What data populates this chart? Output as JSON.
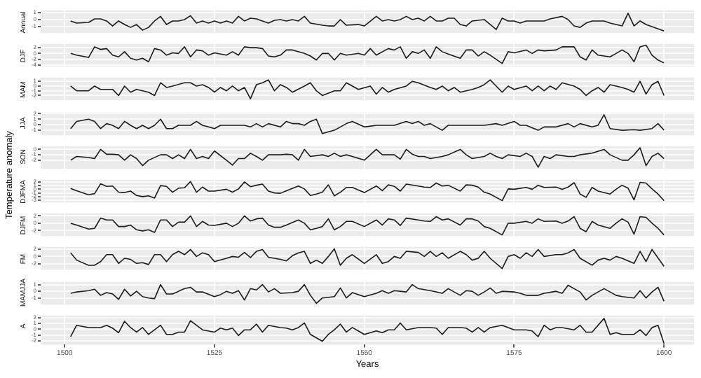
{
  "chart_data": [
    {
      "type": "line",
      "title": "Annual",
      "color": "#1a1a1a",
      "tick_labels": "y",
      "grid": true,
      "xlim": [
        1496,
        1605
      ],
      "xticks": [
        1500,
        1525,
        1550,
        1575,
        1600
      ],
      "ylim": [
        -1.9,
        1.3
      ],
      "yticks": [
        -1,
        0,
        1
      ],
      "x": [
        1501,
        1502,
        1504,
        1505,
        1506,
        1507,
        1508,
        1509,
        1510,
        1511,
        1512,
        1513,
        1514,
        1515,
        1516,
        1517,
        1518,
        1519,
        1520,
        1521,
        1522,
        1523,
        1524,
        1525,
        1526,
        1527,
        1528,
        1529,
        1530,
        1531,
        1532,
        1533,
        1534,
        1535,
        1536,
        1537,
        1538,
        1539,
        1540,
        1541,
        1543,
        1544,
        1545,
        1546,
        1547,
        1549,
        1550,
        1552,
        1553,
        1554,
        1555,
        1556,
        1557,
        1558,
        1559,
        1560,
        1561,
        1562,
        1563,
        1564,
        1565,
        1566,
        1567,
        1568,
        1570,
        1572,
        1573,
        1574,
        1575,
        1576,
        1577,
        1578,
        1580,
        1581,
        1583,
        1584,
        1585,
        1586,
        1587,
        1588,
        1590,
        1591,
        1592,
        1593,
        1594,
        1595,
        1596,
        1597,
        1600
      ],
      "values": [
        -0.2,
        -0.5,
        -0.4,
        0.1,
        0.1,
        -0.2,
        -0.9,
        -0.2,
        -0.7,
        -1.1,
        -0.7,
        -1.5,
        -1.1,
        -0.2,
        0.45,
        -0.7,
        -0.2,
        -0.2,
        0,
        0.55,
        -0.5,
        -0.2,
        -0.5,
        -0.2,
        -0.5,
        -0.2,
        -0.5,
        0.45,
        -0.2,
        0.2,
        0.1,
        -0.2,
        -0.5,
        -0.1,
        0,
        -0.2,
        0,
        -0.2,
        0.45,
        -0.5,
        -0.8,
        -0.9,
        -0.9,
        0,
        -0.8,
        -0.7,
        -0.9,
        0.45,
        -0.2,
        0,
        -0.2,
        0,
        0.45,
        0,
        0.2,
        -0.2,
        0.45,
        -0.2,
        -0.2,
        0.2,
        0.2,
        -0.7,
        -0.9,
        -0.2,
        0,
        -1.4,
        0.2,
        -0.2,
        -0.2,
        -0.5,
        -0.2,
        -0.2,
        -0.2,
        0.1,
        0.45,
        0,
        -0.9,
        -1.1,
        -0.5,
        -0.2,
        -0.2,
        -0.5,
        -0.7,
        -0.9,
        0.9,
        -0.9,
        -0.2,
        -0.7,
        -1.6
      ]
    },
    {
      "type": "line",
      "title": "DJF",
      "color": "#1a1a1a",
      "tick_labels": "y",
      "grid": true,
      "xlim": [
        1496,
        1605
      ],
      "xticks": [
        1500,
        1525,
        1550,
        1575,
        1600
      ],
      "ylim": [
        -4.6,
        3.3
      ],
      "yticks": [
        -4,
        -2,
        0,
        2
      ],
      "x": [
        1501,
        1502,
        1504,
        1505,
        1506,
        1507,
        1508,
        1509,
        1510,
        1511,
        1512,
        1513,
        1514,
        1515,
        1516,
        1517,
        1518,
        1519,
        1520,
        1521,
        1522,
        1523,
        1524,
        1525,
        1527,
        1528,
        1529,
        1530,
        1531,
        1532,
        1533,
        1534,
        1535,
        1536,
        1537,
        1538,
        1540,
        1541,
        1542,
        1543,
        1544,
        1545,
        1546,
        1547,
        1549,
        1550,
        1551,
        1552,
        1554,
        1555,
        1556,
        1557,
        1558,
        1559,
        1560,
        1561,
        1562,
        1563,
        1564,
        1566,
        1567,
        1568,
        1569,
        1570,
        1571,
        1573,
        1574,
        1575,
        1577,
        1578,
        1579,
        1580,
        1582,
        1583,
        1585,
        1586,
        1587,
        1588,
        1589,
        1591,
        1592,
        1593,
        1594,
        1595,
        1596,
        1597,
        1598,
        1599,
        1600
      ],
      "values": [
        0,
        -0.6,
        -1.4,
        2.3,
        1.4,
        1.7,
        -0.6,
        -1.2,
        0.6,
        -1.7,
        -2.3,
        -1.7,
        -2.9,
        1.7,
        1.2,
        -0.6,
        0.2,
        0,
        2.3,
        -1.2,
        1.2,
        0.9,
        -0.6,
        0.2,
        -0.6,
        0.6,
        -0.6,
        2.3,
        2,
        2,
        1.7,
        -0.9,
        -1.2,
        -0.6,
        1.2,
        1.2,
        0,
        -0.9,
        -2.3,
        0,
        0,
        -2.3,
        0,
        -0.6,
        0,
        -0.6,
        1.7,
        -0.6,
        1.7,
        1.2,
        2.3,
        -1.7,
        0.6,
        0,
        1.2,
        -1.7,
        2.3,
        0.6,
        -0.2,
        -1.7,
        1.2,
        1.2,
        -0.9,
        0.6,
        -0.6,
        -3.5,
        0.6,
        0.2,
        1.2,
        0,
        1.2,
        0.9,
        1.2,
        2.3,
        2.3,
        -1.2,
        -2.3,
        1.2,
        -0.6,
        -1.2,
        0,
        1.2,
        0,
        -2.9,
        2.3,
        2.9,
        -0.6,
        -2.3,
        -3.3
      ]
    },
    {
      "type": "line",
      "title": "MAM",
      "color": "#1a1a1a",
      "tick_labels": "y",
      "grid": true,
      "xlim": [
        1496,
        1605
      ],
      "xticks": [
        1500,
        1525,
        1550,
        1575,
        1600
      ],
      "ylim": [
        -3,
        1.8
      ],
      "yticks": [
        -2,
        -1,
        0,
        1
      ],
      "x": [
        1501,
        1502,
        1504,
        1505,
        1506,
        1508,
        1509,
        1510,
        1511,
        1512,
        1514,
        1515,
        1516,
        1517,
        1518,
        1520,
        1521,
        1522,
        1523,
        1524,
        1525,
        1526,
        1527,
        1528,
        1529,
        1530,
        1531,
        1532,
        1533,
        1534,
        1535,
        1536,
        1537,
        1538,
        1540,
        1541,
        1542,
        1543,
        1545,
        1546,
        1547,
        1549,
        1551,
        1552,
        1553,
        1554,
        1555,
        1557,
        1558,
        1559,
        1561,
        1562,
        1563,
        1564,
        1565,
        1566,
        1568,
        1569,
        1570,
        1571,
        1572,
        1573,
        1574,
        1575,
        1577,
        1578,
        1579,
        1580,
        1581,
        1582,
        1583,
        1585,
        1586,
        1587,
        1588,
        1589,
        1590,
        1591,
        1593,
        1594,
        1595,
        1596,
        1597,
        1598,
        1599,
        1600
      ],
      "values": [
        0,
        -1,
        -1,
        0,
        -0.7,
        -0.7,
        -2,
        0,
        -1.3,
        -0.7,
        -1.3,
        -2,
        0.7,
        -0.3,
        0,
        0.7,
        0.7,
        0,
        0.3,
        -0.3,
        -1.3,
        -0.3,
        -1,
        0,
        -1,
        -0.3,
        -2.7,
        0.3,
        0.7,
        1.3,
        -1,
        0.3,
        -0.3,
        -1.3,
        0,
        0.7,
        -1,
        -2,
        -1,
        -1,
        0.7,
        -0.7,
        0,
        -1.7,
        -0.3,
        -1.3,
        -0.7,
        0,
        1,
        0.7,
        -0.3,
        -0.7,
        0,
        -1,
        -0.3,
        -1.3,
        -0.7,
        -0.3,
        0.3,
        1.3,
        0,
        -1.3,
        0,
        -0.7,
        0,
        -1,
        0,
        -1,
        0,
        -0.7,
        0.7,
        0,
        -0.7,
        -2,
        -1,
        -0.3,
        -1.3,
        0.3,
        -0.3,
        -0.7,
        -1.3,
        1,
        -1.7,
        0.3,
        1,
        -2
      ]
    },
    {
      "type": "line",
      "title": "JJA",
      "color": "#1a1a1a",
      "tick_labels": "y",
      "grid": true,
      "xlim": [
        1496,
        1605
      ],
      "xticks": [
        1500,
        1525,
        1550,
        1575,
        1600
      ],
      "ylim": [
        -1.9,
        2.2
      ],
      "yticks": [
        -1,
        0,
        1,
        2
      ],
      "x": [
        1501,
        1502,
        1504,
        1505,
        1506,
        1507,
        1508,
        1509,
        1510,
        1511,
        1512,
        1513,
        1514,
        1515,
        1516,
        1517,
        1518,
        1519,
        1521,
        1522,
        1523,
        1524,
        1525,
        1526,
        1528,
        1530,
        1531,
        1532,
        1533,
        1534,
        1536,
        1537,
        1538,
        1539,
        1540,
        1541,
        1542,
        1543,
        1545,
        1546,
        1547,
        1548,
        1550,
        1552,
        1554,
        1555,
        1557,
        1558,
        1559,
        1560,
        1561,
        1563,
        1564,
        1566,
        1568,
        1570,
        1572,
        1573,
        1575,
        1576,
        1577,
        1579,
        1580,
        1582,
        1584,
        1585,
        1586,
        1588,
        1589,
        1590,
        1591,
        1593,
        1595,
        1596,
        1598,
        1599,
        1600
      ],
      "values": [
        -0.7,
        0.6,
        1,
        0.6,
        -0.7,
        0.2,
        -0.1,
        -0.7,
        0.6,
        -0.1,
        -0.7,
        -0.1,
        -0.7,
        -0.1,
        1,
        -0.7,
        -0.7,
        -0.1,
        -0.1,
        0.6,
        -0.1,
        -0.4,
        -0.7,
        -0.1,
        -0.1,
        -0.1,
        -0.4,
        0.2,
        -0.4,
        0.2,
        -0.4,
        0.6,
        0.2,
        0.2,
        -0.1,
        0.6,
        1,
        -1.6,
        -1,
        -0.4,
        0.2,
        0.6,
        -0.4,
        -0.1,
        -0.1,
        -0.1,
        0.6,
        0.2,
        0.6,
        -0.1,
        0.2,
        -1,
        -0.1,
        -0.1,
        -0.1,
        -0.1,
        0.2,
        -0.1,
        0.6,
        -0.1,
        -0.1,
        -1,
        -0.4,
        -0.4,
        0.2,
        -0.4,
        0.2,
        -0.4,
        -0.1,
        1.8,
        -0.7,
        -1,
        -0.9,
        -1,
        -0.7,
        0.2,
        -1
      ]
    },
    {
      "type": "line",
      "title": "SON",
      "color": "#1a1a1a",
      "tick_labels": "y",
      "grid": true,
      "xlim": [
        1496,
        1605
      ],
      "xticks": [
        1500,
        1525,
        1550,
        1575,
        1600
      ],
      "ylim": [
        -3.6,
        0.6
      ],
      "yticks": [
        -2,
        -1,
        0
      ],
      "x": [
        1501,
        1502,
        1504,
        1505,
        1506,
        1507,
        1508,
        1509,
        1510,
        1511,
        1512,
        1513,
        1514,
        1516,
        1517,
        1518,
        1519,
        1520,
        1521,
        1522,
        1523,
        1524,
        1525,
        1527,
        1528,
        1529,
        1530,
        1531,
        1532,
        1533,
        1534,
        1536,
        1537,
        1538,
        1539,
        1540,
        1541,
        1543,
        1544,
        1545,
        1546,
        1547,
        1548,
        1550,
        1552,
        1553,
        1555,
        1556,
        1557,
        1558,
        1559,
        1560,
        1561,
        1563,
        1564,
        1566,
        1567,
        1568,
        1570,
        1571,
        1572,
        1573,
        1574,
        1576,
        1577,
        1578,
        1579,
        1580,
        1581,
        1582,
        1584,
        1585,
        1586,
        1588,
        1590,
        1591,
        1593,
        1594,
        1595,
        1596,
        1597,
        1598,
        1599,
        1600
      ],
      "values": [
        -2,
        -1.3,
        -1.5,
        -1.7,
        0,
        -0.9,
        -0.9,
        -1,
        -2,
        -1,
        -1.7,
        -3,
        -2,
        -1,
        -1,
        -1.7,
        -1,
        -1.7,
        0,
        -1.7,
        -1.3,
        -1.7,
        -0.3,
        -2,
        -2.9,
        -1.7,
        -1.7,
        -0.7,
        -1.3,
        -2,
        -1,
        -1,
        -0.9,
        -1,
        -2,
        0,
        -1.3,
        -1,
        -1.3,
        -0.7,
        -1.3,
        -1,
        -1.3,
        -2,
        0,
        -1,
        -1,
        -1.8,
        0,
        -0.9,
        -1.3,
        -1.3,
        -1.7,
        -1.3,
        -1,
        0,
        -1,
        -1.7,
        -1.3,
        -0.7,
        -1.3,
        -1.7,
        -1,
        -1.3,
        -0.7,
        -1.3,
        -3.3,
        -1.3,
        -1.7,
        -1,
        -1.3,
        -1.3,
        -1,
        -0.7,
        0,
        -1,
        -2,
        -2,
        -1,
        0.3,
        -3,
        -1.3,
        -0.7,
        -1.7
      ]
    },
    {
      "type": "line",
      "title": "DJFMA",
      "ylabel": "Temperature anomaly",
      "color": "#1a1a1a",
      "tick_labels": "y",
      "grid": true,
      "xlim": [
        1496,
        1605
      ],
      "xticks": [
        1500,
        1525,
        1550,
        1575,
        1600
      ],
      "ylim": [
        -3.6,
        2.6
      ],
      "yticks": [
        -3,
        -2,
        -1,
        0,
        1,
        2
      ],
      "x": [
        1501,
        1502,
        1504,
        1505,
        1506,
        1507,
        1508,
        1509,
        1510,
        1511,
        1512,
        1513,
        1514,
        1515,
        1516,
        1517,
        1518,
        1519,
        1520,
        1521,
        1522,
        1523,
        1524,
        1525,
        1527,
        1528,
        1529,
        1530,
        1531,
        1532,
        1533,
        1534,
        1535,
        1536,
        1537,
        1539,
        1540,
        1541,
        1542,
        1543,
        1544,
        1545,
        1546,
        1547,
        1548,
        1550,
        1552,
        1553,
        1554,
        1555,
        1556,
        1557,
        1559,
        1560,
        1561,
        1562,
        1563,
        1564,
        1566,
        1567,
        1568,
        1569,
        1570,
        1571,
        1573,
        1574,
        1575,
        1577,
        1578,
        1579,
        1580,
        1582,
        1583,
        1584,
        1585,
        1586,
        1587,
        1588,
        1589,
        1591,
        1592,
        1593,
        1594,
        1595,
        1596,
        1597,
        1598,
        1599,
        1600
      ],
      "values": [
        0.2,
        -0.4,
        -1.5,
        -1.2,
        1.5,
        0.8,
        0.9,
        -0.8,
        -0.9,
        -0.5,
        -1.7,
        -2,
        -1.8,
        -2.4,
        1,
        0.8,
        -0.8,
        0.3,
        0.4,
        2.1,
        -0.8,
        0.6,
        -0.5,
        -0.5,
        0,
        -0.8,
        0.1,
        2,
        0.7,
        1.1,
        1.4,
        -0.5,
        -1,
        -1.1,
        -0.4,
        0.9,
        0.1,
        -1.7,
        -1.3,
        -0.8,
        1.2,
        -1.8,
        -0.8,
        0.5,
        0.5,
        -0.9,
        0.9,
        -0.4,
        1.2,
        0.8,
        -0.5,
        1.4,
        0.9,
        0.6,
        0.5,
        1.7,
        0.9,
        1.1,
        -0.5,
        1.2,
        1.1,
        0.6,
        -0.8,
        -1.3,
        -3.1,
        0.1,
        0,
        0.5,
        0,
        1.1,
        0.5,
        0.6,
        0,
        0.6,
        1.8,
        -1.3,
        -2.2,
        0.5,
        -0.5,
        -1.3,
        0,
        1.1,
        0.3,
        -2.9,
        1.9,
        1.7,
        0.1,
        -1.3,
        -3.1
      ]
    },
    {
      "type": "line",
      "title": "DJFM",
      "color": "#1a1a1a",
      "tick_labels": "y",
      "grid": true,
      "xlim": [
        1496,
        1605
      ],
      "xticks": [
        1500,
        1525,
        1550,
        1575,
        1600
      ],
      "ylim": [
        -3.5,
        2.7
      ],
      "yticks": [
        -2,
        0,
        2
      ],
      "x": [
        1501,
        1502,
        1504,
        1505,
        1506,
        1507,
        1508,
        1509,
        1510,
        1511,
        1512,
        1513,
        1514,
        1515,
        1516,
        1517,
        1518,
        1519,
        1520,
        1521,
        1522,
        1523,
        1524,
        1525,
        1527,
        1528,
        1529,
        1530,
        1531,
        1532,
        1533,
        1534,
        1535,
        1536,
        1537,
        1539,
        1540,
        1541,
        1542,
        1543,
        1544,
        1545,
        1546,
        1547,
        1548,
        1550,
        1552,
        1553,
        1554,
        1555,
        1556,
        1557,
        1559,
        1560,
        1561,
        1562,
        1563,
        1564,
        1566,
        1567,
        1568,
        1569,
        1570,
        1571,
        1573,
        1574,
        1575,
        1577,
        1578,
        1579,
        1580,
        1582,
        1583,
        1584,
        1585,
        1586,
        1587,
        1588,
        1589,
        1591,
        1592,
        1593,
        1594,
        1595,
        1596,
        1597,
        1598,
        1599,
        1600
      ],
      "values": [
        0,
        -0.5,
        -1.6,
        -1.4,
        1.4,
        0.9,
        0.9,
        -0.9,
        -0.9,
        -0.5,
        -1.8,
        -2.1,
        -1.8,
        -2.5,
        0.9,
        0.9,
        -0.9,
        0.3,
        0.3,
        2,
        -0.9,
        0.5,
        -0.5,
        -0.6,
        0,
        -0.9,
        0,
        2,
        0.6,
        1.2,
        1.4,
        -0.5,
        -1.1,
        -1.1,
        -0.5,
        0.9,
        0,
        -1.8,
        -1.4,
        -0.9,
        1.2,
        -1.8,
        -0.9,
        0.5,
        0.5,
        -0.9,
        0.9,
        -0.5,
        1.2,
        0.9,
        -0.6,
        1.4,
        0.9,
        0.6,
        0.5,
        1.8,
        0.9,
        1.2,
        -0.5,
        1.2,
        1.2,
        0.6,
        -0.9,
        -1.4,
        -3.2,
        0,
        0,
        0.5,
        0,
        1.2,
        0.5,
        0.6,
        0,
        0.6,
        1.8,
        -1.4,
        -2.3,
        0.5,
        -0.5,
        -1.4,
        0,
        1.2,
        0.3,
        -3,
        1.8,
        1.6,
        0,
        -1.4,
        -3.2
      ]
    },
    {
      "type": "line",
      "title": "FM",
      "color": "#1a1a1a",
      "tick_labels": "y",
      "grid": true,
      "xlim": [
        1496,
        1605
      ],
      "xticks": [
        1500,
        1525,
        1550,
        1575,
        1600
      ],
      "ylim": [
        -3.6,
        2.6
      ],
      "yticks": [
        -2,
        0,
        2
      ],
      "x": [
        1501,
        1502,
        1504,
        1505,
        1506,
        1507,
        1508,
        1509,
        1510,
        1511,
        1512,
        1513,
        1514,
        1515,
        1516,
        1517,
        1518,
        1519,
        1520,
        1521,
        1522,
        1523,
        1524,
        1525,
        1527,
        1528,
        1529,
        1530,
        1531,
        1532,
        1533,
        1534,
        1536,
        1537,
        1538,
        1539,
        1540,
        1541,
        1542,
        1543,
        1544,
        1545,
        1546,
        1547,
        1548,
        1550,
        1552,
        1553,
        1554,
        1555,
        1556,
        1557,
        1559,
        1560,
        1561,
        1562,
        1563,
        1564,
        1566,
        1567,
        1568,
        1569,
        1570,
        1571,
        1573,
        1574,
        1575,
        1576,
        1577,
        1578,
        1579,
        1580,
        1582,
        1583,
        1584,
        1585,
        1586,
        1588,
        1589,
        1590,
        1591,
        1592,
        1593,
        1595,
        1596,
        1597,
        1598,
        1600
      ],
      "values": [
        1,
        -1,
        -2.4,
        -2.4,
        -1.4,
        0.5,
        0.5,
        -1.9,
        -0.5,
        -0.8,
        -1.9,
        -1.7,
        -2.2,
        0.5,
        0.5,
        -1.4,
        0.5,
        1.4,
        0.5,
        1.9,
        0,
        1,
        0.5,
        -1.4,
        -0.5,
        0,
        -0.2,
        1.1,
        -0.3,
        1.4,
        1.9,
        -0.2,
        -0.8,
        -1.2,
        0.2,
        1,
        1.4,
        -1.9,
        -1,
        -1.9,
        0,
        2.1,
        -2.4,
        -0.5,
        0.5,
        -1.9,
        0.5,
        -1.9,
        -1.4,
        0,
        -0.5,
        1.4,
        1.1,
        0,
        1.4,
        0,
        1,
        -0.5,
        1.4,
        0.5,
        -1,
        -0.5,
        1.4,
        -0.5,
        -3.3,
        0,
        0.5,
        -0.5,
        1,
        0,
        1.9,
        0,
        0.5,
        0.5,
        1,
        1.9,
        -0.5,
        -2.4,
        -1,
        -0.5,
        -1,
        0,
        -0.5,
        -1.9,
        1.4,
        -1.4,
        1.9,
        -2.7
      ]
    },
    {
      "type": "line",
      "title": "MAMJJA",
      "color": "#1a1a1a",
      "tick_labels": "y",
      "grid": true,
      "xlim": [
        1496,
        1605
      ],
      "xticks": [
        1500,
        1525,
        1550,
        1575,
        1600
      ],
      "ylim": [
        -2,
        1.4
      ],
      "yticks": [
        -1,
        0,
        1
      ],
      "x": [
        1501,
        1502,
        1504,
        1505,
        1506,
        1507,
        1508,
        1509,
        1510,
        1511,
        1512,
        1513,
        1514,
        1515,
        1516,
        1517,
        1518,
        1520,
        1521,
        1522,
        1523,
        1525,
        1526,
        1527,
        1528,
        1529,
        1530,
        1531,
        1532,
        1533,
        1534,
        1535,
        1536,
        1538,
        1539,
        1540,
        1541,
        1542,
        1543,
        1545,
        1546,
        1547,
        1548,
        1550,
        1552,
        1553,
        1554,
        1555,
        1556,
        1557,
        1558,
        1559,
        1561,
        1562,
        1563,
        1564,
        1566,
        1567,
        1568,
        1569,
        1570,
        1571,
        1572,
        1573,
        1575,
        1576,
        1577,
        1579,
        1580,
        1582,
        1583,
        1584,
        1585,
        1586,
        1587,
        1588,
        1590,
        1591,
        1592,
        1593,
        1595,
        1596,
        1597,
        1598,
        1599,
        1600
      ],
      "values": [
        -0.3,
        -0.1,
        0.1,
        0.3,
        -0.6,
        -0.2,
        -0.4,
        -1.2,
        0.3,
        -0.7,
        0,
        -0.8,
        -1,
        -1.1,
        1,
        -0.4,
        -0.4,
        0.4,
        0.6,
        -0.1,
        -0.1,
        -0.8,
        -0.5,
        0,
        -0.3,
        0.1,
        -1.3,
        0.4,
        0.2,
        1,
        -0.1,
        0.4,
        -0.3,
        -0.2,
        0,
        1,
        -0.6,
        -1.8,
        -1,
        -0.8,
        0.5,
        -1,
        -0.2,
        -0.8,
        -0.3,
        0.1,
        -0.3,
        0.1,
        0,
        -0.1,
        1,
        0.4,
        0.1,
        -0.1,
        -0.3,
        0.4,
        -0.6,
        0.1,
        0,
        -0.6,
        -0.1,
        0.5,
        -0.3,
        0,
        -0.1,
        -0.3,
        -0.6,
        -0.6,
        -0.3,
        0,
        -0.3,
        0.9,
        0.4,
        -0.1,
        -1.3,
        -0.6,
        0.4,
        -0.1,
        -0.6,
        -0.8,
        -1,
        0.1,
        -1,
        -0.1,
        0.6,
        -1.5
      ]
    },
    {
      "type": "line",
      "title": "A",
      "xlabel": "Years",
      "color": "#1a1a1a",
      "grid": true,
      "xlim": [
        1496,
        1605
      ],
      "xticks": [
        1500,
        1525,
        1550,
        1575,
        1600
      ],
      "ylim": [
        -2.7,
        2.4
      ],
      "yticks": [
        -2,
        -1,
        0,
        1,
        2
      ],
      "x": [
        1501,
        1502,
        1504,
        1505,
        1506,
        1507,
        1508,
        1509,
        1510,
        1511,
        1512,
        1513,
        1514,
        1516,
        1517,
        1518,
        1519,
        1520,
        1521,
        1522,
        1523,
        1525,
        1526,
        1527,
        1528,
        1529,
        1530,
        1531,
        1532,
        1533,
        1534,
        1536,
        1537,
        1538,
        1539,
        1540,
        1541,
        1543,
        1544,
        1545,
        1546,
        1547,
        1548,
        1550,
        1552,
        1553,
        1554,
        1555,
        1556,
        1557,
        1559,
        1560,
        1561,
        1562,
        1563,
        1564,
        1566,
        1567,
        1568,
        1569,
        1570,
        1571,
        1573,
        1574,
        1575,
        1577,
        1578,
        1579,
        1580,
        1581,
        1582,
        1583,
        1585,
        1586,
        1587,
        1588,
        1590,
        1591,
        1592,
        1593,
        1595,
        1596,
        1597,
        1598,
        1599,
        1600
      ],
      "values": [
        -1.3,
        0.7,
        0.3,
        0.3,
        0.3,
        0.7,
        0.2,
        -0.6,
        1.4,
        0.3,
        -0.5,
        0.3,
        -0.9,
        0.7,
        -0.9,
        -0.9,
        -0.5,
        -0.5,
        1.5,
        0.7,
        -0.1,
        -0.5,
        0.2,
        -0.1,
        0.2,
        -1.1,
        -0.1,
        -0.1,
        0.9,
        -0.5,
        0.7,
        0.3,
        0.2,
        -0.1,
        0.3,
        1.1,
        -0.9,
        -2.1,
        -0.9,
        -0.1,
        0.9,
        -0.5,
        0.3,
        -0.9,
        -0.3,
        -0.6,
        -0.1,
        -0.1,
        1.1,
        -0.1,
        0.3,
        0.3,
        0.3,
        0.2,
        -0.9,
        0.3,
        0.3,
        0.2,
        -0.5,
        0.3,
        -0.5,
        0.3,
        0.7,
        0.3,
        -0.1,
        -0.1,
        -0.3,
        -1.3,
        0.7,
        -0.1,
        0.3,
        0.3,
        -0.1,
        0.7,
        -0.5,
        -0.5,
        1.9,
        -0.9,
        -0.6,
        -0.9,
        -0.9,
        -0.1,
        -1.1,
        0.3,
        0.7,
        -2.5
      ]
    }
  ]
}
